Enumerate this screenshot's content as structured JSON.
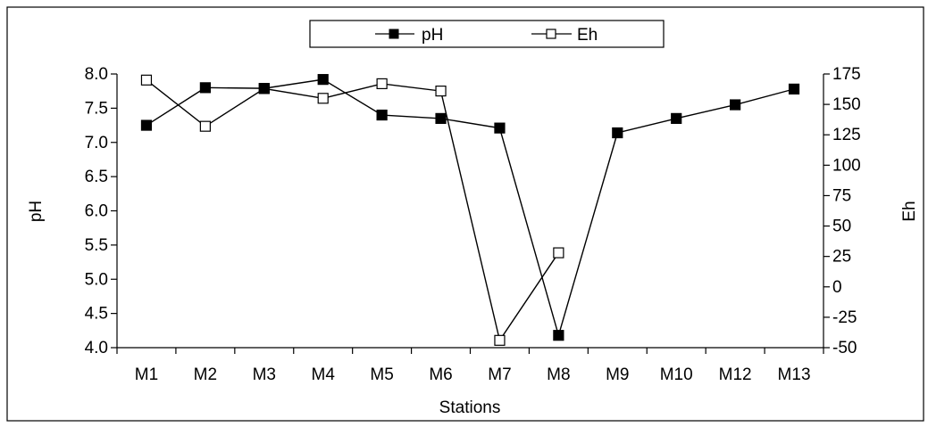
{
  "chart_data": {
    "type": "line",
    "categories": [
      "M1",
      "M2",
      "M3",
      "M4",
      "M5",
      "M6",
      "M7",
      "M8",
      "M9",
      "M10",
      "M12",
      "M13"
    ],
    "xlabel": "Stations",
    "ylabel_left": "pH",
    "ylabel_right": "Eh",
    "ylim_left": [
      4.0,
      8.0
    ],
    "yticks_left": [
      "4.0",
      "4.5",
      "5.0",
      "5.5",
      "6.0",
      "6.5",
      "7.0",
      "7.5",
      "8.0"
    ],
    "ylim_right": [
      -50,
      175
    ],
    "yticks_right": [
      "-50",
      "-25",
      "0",
      "25",
      "50",
      "75",
      "100",
      "125",
      "150",
      "175"
    ],
    "grid": false,
    "legend_position": "top-center",
    "series": [
      {
        "name": "pH",
        "axis": "left",
        "marker": "filled-square",
        "color": "#000000",
        "values": [
          7.25,
          7.8,
          7.79,
          7.92,
          7.4,
          7.35,
          7.21,
          4.18,
          7.14,
          7.35,
          7.55,
          7.78
        ]
      },
      {
        "name": "Eh",
        "axis": "right",
        "marker": "open-square",
        "color": "#000000",
        "values": [
          170,
          132,
          163,
          155,
          167,
          161,
          -44,
          28,
          null,
          null,
          null,
          null
        ]
      }
    ]
  }
}
